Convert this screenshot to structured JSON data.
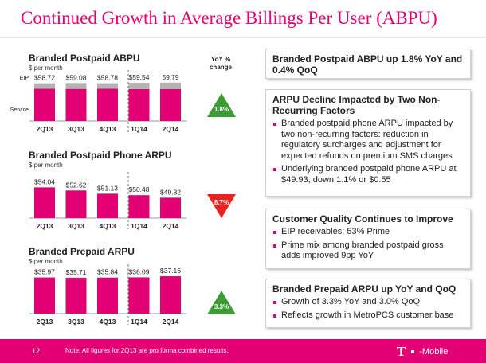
{
  "slide": {
    "title": "Continued Growth in Average Billings Per User (ABPU)",
    "page_number": "12",
    "footnote": "Note: All figures for 2Q13 are pro forma combined results.",
    "brand": {
      "t": "T",
      "dot": "·",
      "name": "Mobile",
      "dash": "-"
    },
    "accent_color": "#e20074",
    "yoy_header_line1": "YoY %",
    "yoy_header_line2": "change"
  },
  "chart_data": [
    {
      "type": "bar",
      "title": "Branded Postpaid ABPU",
      "subtitle": "$ per month",
      "categories": [
        "2Q13",
        "3Q13",
        "4Q13",
        "1Q14",
        "2Q14"
      ],
      "value_labels": [
        "$58.72",
        "$59.08",
        "$58.78",
        "$59.54",
        "59.79"
      ],
      "series": [
        {
          "name": "Service",
          "values": [
            50.2,
            50.0,
            50.3,
            49.7,
            49.6
          ],
          "color": "#e20074"
        },
        {
          "name": "EIP",
          "values": [
            8.5,
            9.1,
            8.5,
            9.8,
            10.2
          ],
          "color": "#b3b3b3"
        }
      ],
      "totals": [
        58.72,
        59.08,
        58.78,
        59.54,
        59.79
      ],
      "stacked": true,
      "ylim": [
        0,
        62
      ],
      "yoy": {
        "label": "1.8%",
        "direction": "up",
        "color": "#3d9b35"
      }
    },
    {
      "type": "bar",
      "title": "Branded Postpaid Phone ARPU",
      "subtitle": "$ per month",
      "categories": [
        "2Q13",
        "3Q13",
        "4Q13",
        "1Q14",
        "2Q14"
      ],
      "value_labels": [
        "$54.04",
        "$52.62",
        "$51.13",
        "$50.48",
        "$49.32"
      ],
      "values": [
        54.04,
        52.62,
        51.13,
        50.48,
        49.32
      ],
      "color": "#e20074",
      "ylim": [
        40,
        56
      ],
      "yoy": {
        "label": "8.7%",
        "direction": "down",
        "color": "#e8231f"
      }
    },
    {
      "type": "bar",
      "title": "Branded Prepaid ARPU",
      "subtitle": "$ per month",
      "categories": [
        "2Q13",
        "3Q13",
        "4Q13",
        "1Q14",
        "2Q14"
      ],
      "value_labels": [
        "$35.97",
        "$35.71",
        "$35.84",
        "$36.09",
        "$37.16"
      ],
      "values": [
        35.97,
        35.71,
        35.84,
        36.09,
        37.16
      ],
      "color": "#e20074",
      "ylim": [
        0,
        38
      ],
      "yoy": {
        "label": "3.3%",
        "direction": "up",
        "color": "#3d9b35"
      }
    }
  ],
  "panels": [
    {
      "heading": "Branded Postpaid ABPU up 1.8% YoY and 0.4% QoQ",
      "bullets": []
    },
    {
      "heading": "ARPU Decline Impacted by Two Non-Recurring Factors",
      "bullets": [
        "Branded postpaid phone ARPU impacted by two non-recurring factors: reduction in regulatory surcharges and adjustment for expected refunds on premium SMS charges",
        "Underlying branded postpaid phone ARPU at $49.93, down 1.1% or $0.55"
      ]
    },
    {
      "heading": "Customer Quality Continues to Improve",
      "bullets": [
        "EIP receivables: 53% Prime",
        "Prime mix among branded postpaid gross adds improved 9pp YoY"
      ]
    },
    {
      "heading": "Branded Prepaid ARPU up YoY and QoQ",
      "bullets": [
        "Growth of 3.3% YoY and 3.0% QoQ",
        "Reflects growth in MetroPCS customer base"
      ]
    }
  ]
}
